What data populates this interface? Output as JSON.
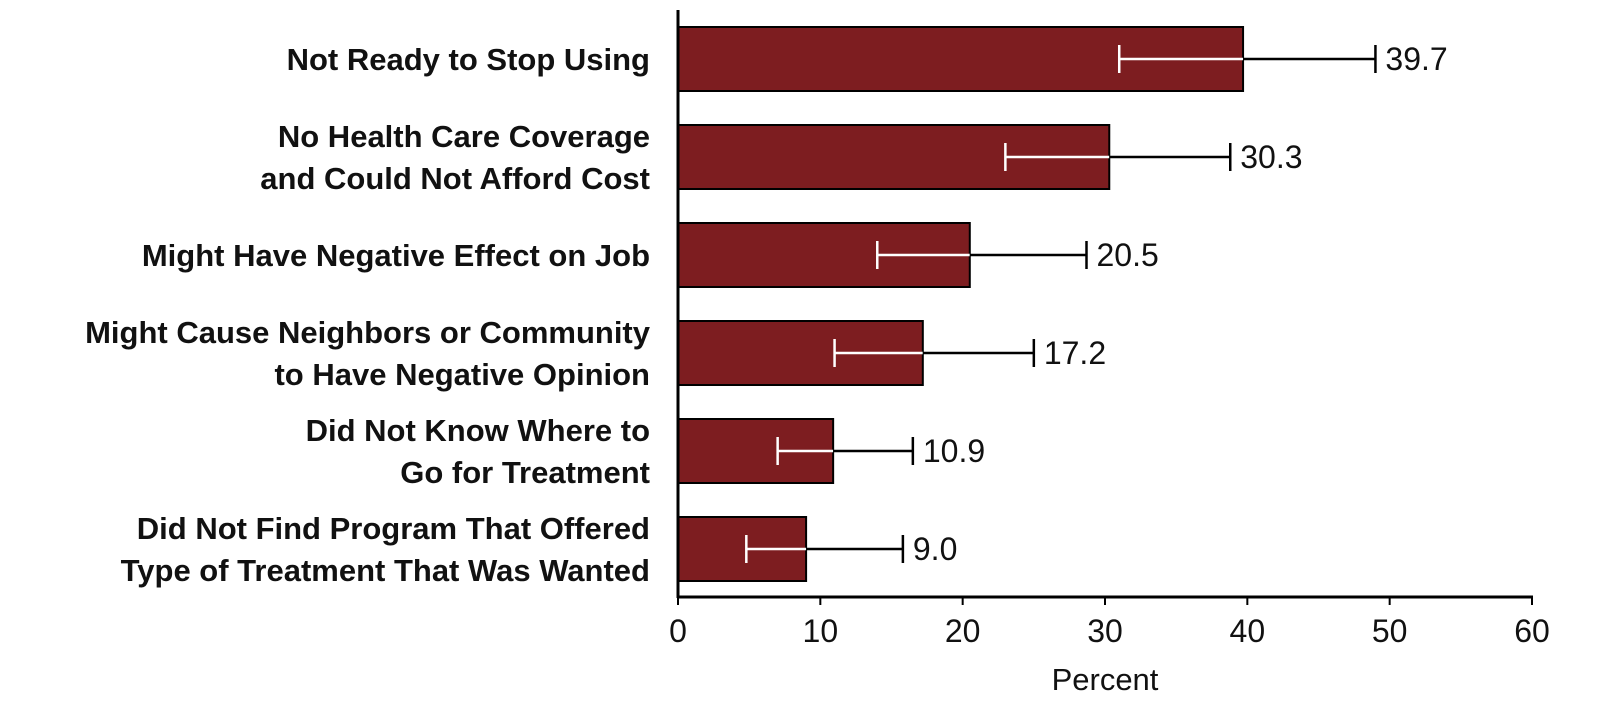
{
  "chart_data": {
    "type": "bar",
    "orientation": "horizontal",
    "categories": [
      [
        "Not Ready to Stop Using"
      ],
      [
        "No Health Care Coverage",
        "and Could Not Afford Cost"
      ],
      [
        "Might Have Negative Effect on Job"
      ],
      [
        "Might Cause Neighbors or Community",
        "to Have Negative Opinion"
      ],
      [
        "Did Not Know Where to",
        "Go for Treatment"
      ],
      [
        "Did Not Find Program That Offered",
        "Type of Treatment That Was Wanted"
      ]
    ],
    "values": [
      39.7,
      30.3,
      20.5,
      17.2,
      10.9,
      9.0
    ],
    "value_labels": [
      "39.7",
      "30.3",
      "20.5",
      "17.2",
      "10.9",
      "9.0"
    ],
    "error_low": [
      31.0,
      23.0,
      14.0,
      11.0,
      7.0,
      4.8
    ],
    "error_high": [
      49.0,
      38.8,
      28.7,
      25.0,
      16.5,
      15.8
    ],
    "xlabel": "Percent",
    "xlim": [
      0,
      60
    ],
    "xticks": [
      "0",
      "10",
      "20",
      "30",
      "40",
      "50",
      "60"
    ],
    "bar_color": "#7d1d20",
    "grid": false
  }
}
